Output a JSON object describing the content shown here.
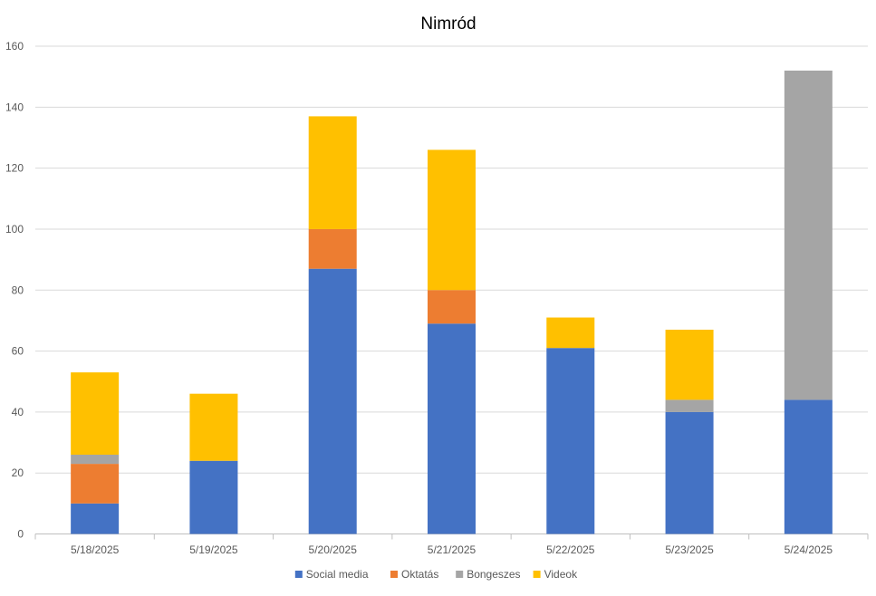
{
  "chart_data": {
    "type": "bar",
    "stacked": true,
    "title": "Nimród",
    "xlabel": "",
    "ylabel": "",
    "ylim": [
      0,
      160
    ],
    "yticks": [
      0,
      20,
      40,
      60,
      80,
      100,
      120,
      140,
      160
    ],
    "grid": true,
    "legend_position": "bottom",
    "categories": [
      "5/18/2025",
      "5/19/2025",
      "5/20/2025",
      "5/21/2025",
      "5/22/2025",
      "5/23/2025",
      "5/24/2025"
    ],
    "series": [
      {
        "name": "Social media",
        "color": "#4472C4",
        "values": [
          10,
          24,
          87,
          69,
          61,
          40,
          44
        ]
      },
      {
        "name": "Oktatás",
        "color": "#ED7D31",
        "values": [
          13,
          0,
          13,
          11,
          0,
          0,
          0
        ]
      },
      {
        "name": "Bongeszes",
        "color": "#A5A5A5",
        "values": [
          3,
          0,
          0,
          0,
          0,
          4,
          108
        ]
      },
      {
        "name": "Videok",
        "color": "#FFC000",
        "values": [
          27,
          22,
          37,
          46,
          10,
          23,
          0
        ]
      }
    ]
  }
}
